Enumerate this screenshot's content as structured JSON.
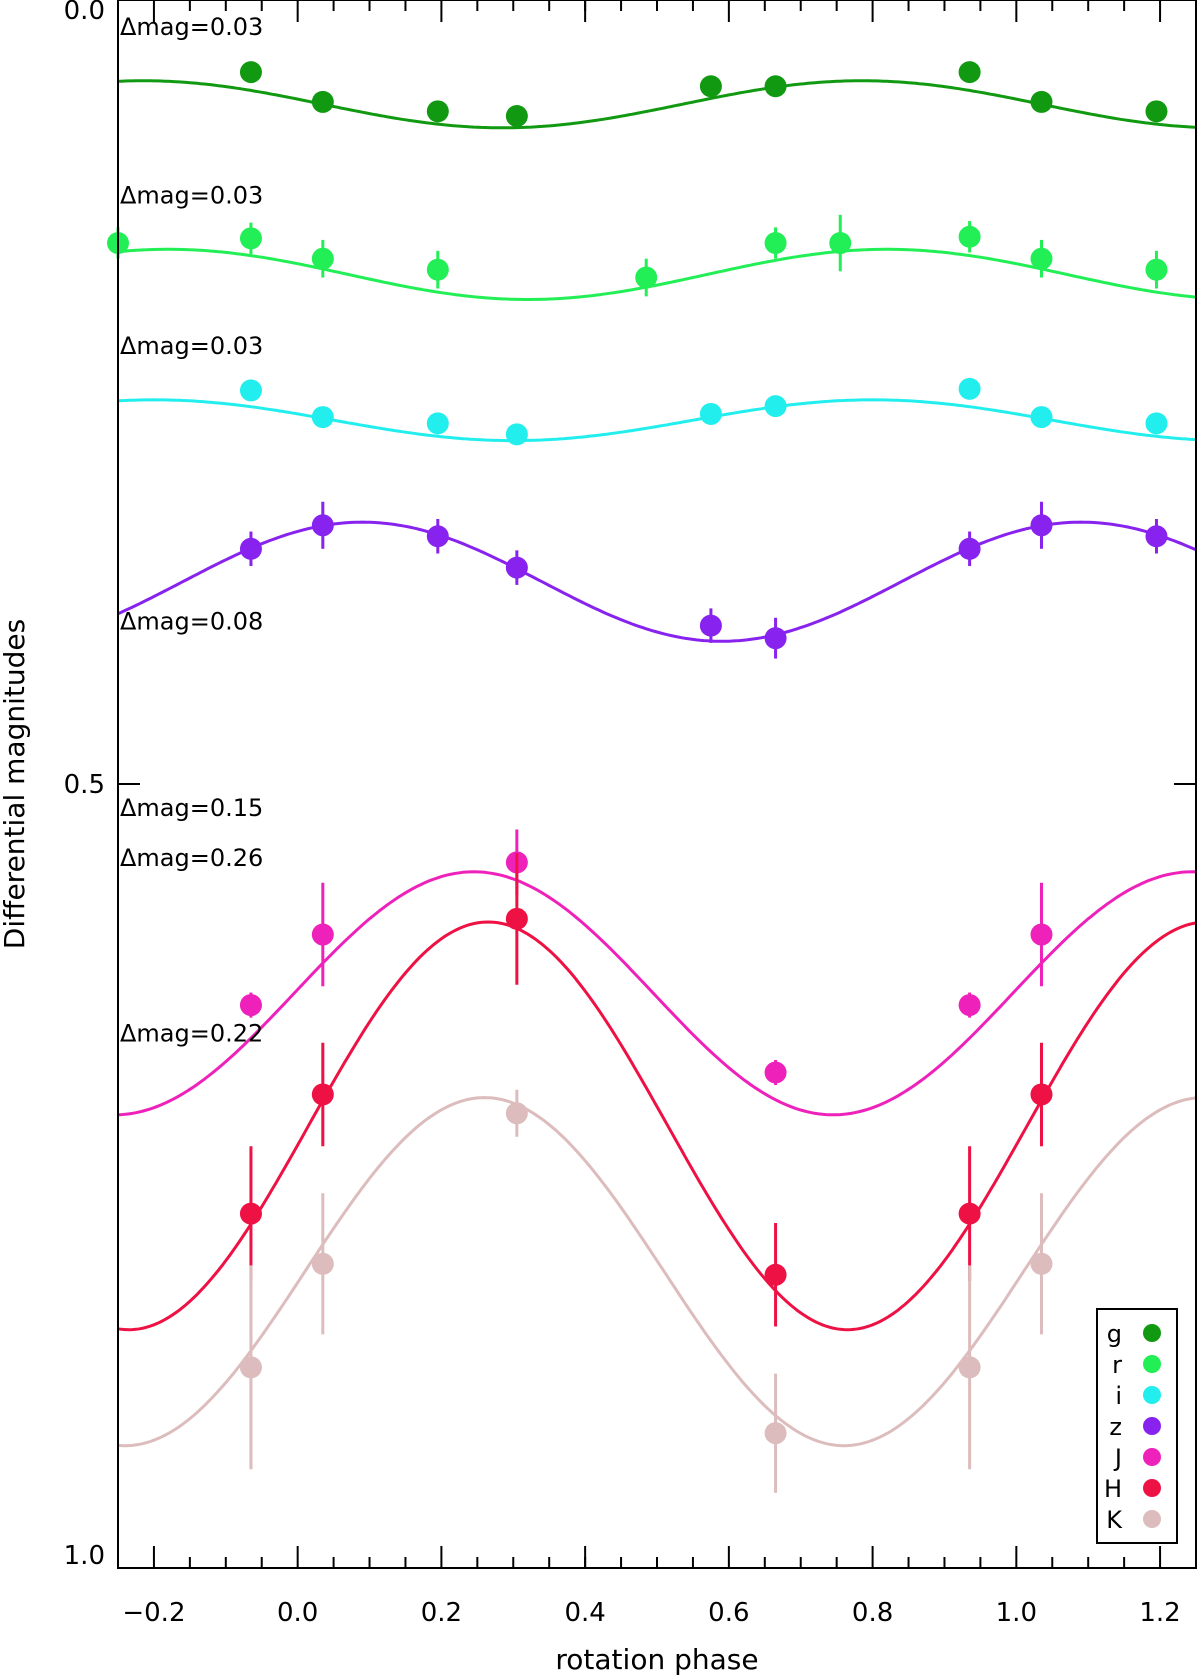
{
  "chart_data": {
    "type": "scatter",
    "title": "",
    "xlabel": "rotation phase",
    "ylabel": "Differential magnitudes",
    "xlim": [
      -0.25,
      1.25
    ],
    "ylim": [
      0.0,
      1.0
    ],
    "y_inverted": true,
    "xticks": [
      -0.2,
      0.0,
      0.2,
      0.4,
      0.6,
      0.8,
      1.0,
      1.2
    ],
    "xtick_labels": [
      "−0.2",
      "0.0",
      "0.2",
      "0.4",
      "0.6",
      "0.8",
      "1.0",
      "1.2"
    ],
    "yticks": [
      0.0,
      0.5,
      1.0
    ],
    "ytick_labels": [
      "0.0",
      "0.5",
      "1.0"
    ],
    "legend_position": "bottom-right",
    "series": [
      {
        "name": "g",
        "color": "#119911",
        "amplitude_label": "Δmag=0.03",
        "fit": {
          "mean": 0.0665,
          "amp": 0.015,
          "phase_of_min_mag": 0.785
        },
        "points": [
          {
            "x": -0.065,
            "y": 0.046,
            "err": 0.005
          },
          {
            "x": 0.035,
            "y": 0.065,
            "err": 0.005
          },
          {
            "x": 0.195,
            "y": 0.071,
            "err": 0.005
          },
          {
            "x": 0.305,
            "y": 0.074,
            "err": 0.005
          },
          {
            "x": 0.575,
            "y": 0.055,
            "err": 0.005
          },
          {
            "x": 0.665,
            "y": 0.055,
            "err": 0.005
          },
          {
            "x": 0.935,
            "y": 0.046,
            "err": 0.005
          },
          {
            "x": 1.035,
            "y": 0.065,
            "err": 0.005
          },
          {
            "x": 1.195,
            "y": 0.071,
            "err": 0.005
          }
        ]
      },
      {
        "name": "r",
        "color": "#22ee55",
        "amplitude_label": "Δmag=0.03",
        "fit": {
          "mean": 0.175,
          "amp": 0.016,
          "phase_of_min_mag": 0.82
        },
        "points": [
          {
            "x": -0.25,
            "y": 0.155,
            "err": 0.01
          },
          {
            "x": -0.065,
            "y": 0.152,
            "err": 0.01
          },
          {
            "x": 0.035,
            "y": 0.165,
            "err": 0.012
          },
          {
            "x": 0.195,
            "y": 0.172,
            "err": 0.012
          },
          {
            "x": 0.485,
            "y": 0.177,
            "err": 0.012
          },
          {
            "x": 0.665,
            "y": 0.155,
            "err": 0.01
          },
          {
            "x": 0.755,
            "y": 0.155,
            "err": 0.018
          },
          {
            "x": 0.935,
            "y": 0.151,
            "err": 0.01
          },
          {
            "x": 1.035,
            "y": 0.165,
            "err": 0.012
          },
          {
            "x": 1.195,
            "y": 0.172,
            "err": 0.012
          }
        ]
      },
      {
        "name": "i",
        "color": "#22eeee",
        "amplitude_label": "Δmag=0.03",
        "fit": {
          "mean": 0.268,
          "amp": 0.013,
          "phase_of_min_mag": 0.8
        },
        "points": [
          {
            "x": -0.065,
            "y": 0.249,
            "err": 0.005
          },
          {
            "x": 0.035,
            "y": 0.266,
            "err": 0.005
          },
          {
            "x": 0.195,
            "y": 0.27,
            "err": 0.005
          },
          {
            "x": 0.305,
            "y": 0.277,
            "err": 0.005
          },
          {
            "x": 0.575,
            "y": 0.264,
            "err": 0.005
          },
          {
            "x": 0.665,
            "y": 0.259,
            "err": 0.005
          },
          {
            "x": 0.935,
            "y": 0.248,
            "err": 0.005
          },
          {
            "x": 1.035,
            "y": 0.266,
            "err": 0.005
          },
          {
            "x": 1.195,
            "y": 0.27,
            "err": 0.005
          }
        ]
      },
      {
        "name": "z",
        "color": "#8822ee",
        "amplitude_label": "Δmag=0.08",
        "fit": {
          "mean": 0.371,
          "amp": 0.038,
          "phase_of_min_mag": 0.09
        },
        "points": [
          {
            "x": -0.065,
            "y": 0.35,
            "err": 0.011
          },
          {
            "x": 0.035,
            "y": 0.335,
            "err": 0.015
          },
          {
            "x": 0.195,
            "y": 0.342,
            "err": 0.011
          },
          {
            "x": 0.305,
            "y": 0.362,
            "err": 0.011
          },
          {
            "x": 0.575,
            "y": 0.399,
            "err": 0.011
          },
          {
            "x": 0.665,
            "y": 0.407,
            "err": 0.013
          },
          {
            "x": 0.935,
            "y": 0.35,
            "err": 0.011
          },
          {
            "x": 1.035,
            "y": 0.335,
            "err": 0.015
          },
          {
            "x": 1.195,
            "y": 0.342,
            "err": 0.011
          }
        ]
      },
      {
        "name": "J",
        "color": "#ee22bb",
        "amplitude_label": "Δmag=0.15",
        "fit": {
          "mean": 0.6335,
          "amp": 0.0775,
          "phase_of_min_mag": 0.245
        },
        "points": [
          {
            "x": -0.065,
            "y": 0.641,
            "err": 0.008
          },
          {
            "x": 0.035,
            "y": 0.596,
            "err": 0.033
          },
          {
            "x": 0.305,
            "y": 0.55,
            "err": 0.021
          },
          {
            "x": 0.665,
            "y": 0.684,
            "err": 0.008
          },
          {
            "x": 0.935,
            "y": 0.641,
            "err": 0.008
          },
          {
            "x": 1.035,
            "y": 0.596,
            "err": 0.033
          }
        ]
      },
      {
        "name": "H",
        "color": "#ee1144",
        "amplitude_label": "Δmag=0.26",
        "fit": {
          "mean": 0.718,
          "amp": 0.13,
          "phase_of_min_mag": 0.265
        },
        "points": [
          {
            "x": -0.065,
            "y": 0.774,
            "err": 0.043
          },
          {
            "x": 0.035,
            "y": 0.698,
            "err": 0.033
          },
          {
            "x": 0.305,
            "y": 0.586,
            "err": 0.042
          },
          {
            "x": 0.665,
            "y": 0.813,
            "err": 0.033
          },
          {
            "x": 0.935,
            "y": 0.774,
            "err": 0.043
          },
          {
            "x": 1.035,
            "y": 0.698,
            "err": 0.033
          }
        ]
      },
      {
        "name": "K",
        "color": "#dcbcbc",
        "amplitude_label": "Δmag=0.22",
        "fit": {
          "mean": 0.811,
          "amp": 0.111,
          "phase_of_min_mag": 0.26
        },
        "points": [
          {
            "x": -0.065,
            "y": 0.872,
            "err": 0.065
          },
          {
            "x": 0.035,
            "y": 0.806,
            "err": 0.045
          },
          {
            "x": 0.305,
            "y": 0.71,
            "err": 0.015
          },
          {
            "x": 0.665,
            "y": 0.914,
            "err": 0.038
          },
          {
            "x": 0.935,
            "y": 0.872,
            "err": 0.065
          },
          {
            "x": 1.035,
            "y": 0.806,
            "err": 0.045
          }
        ]
      }
    ]
  }
}
